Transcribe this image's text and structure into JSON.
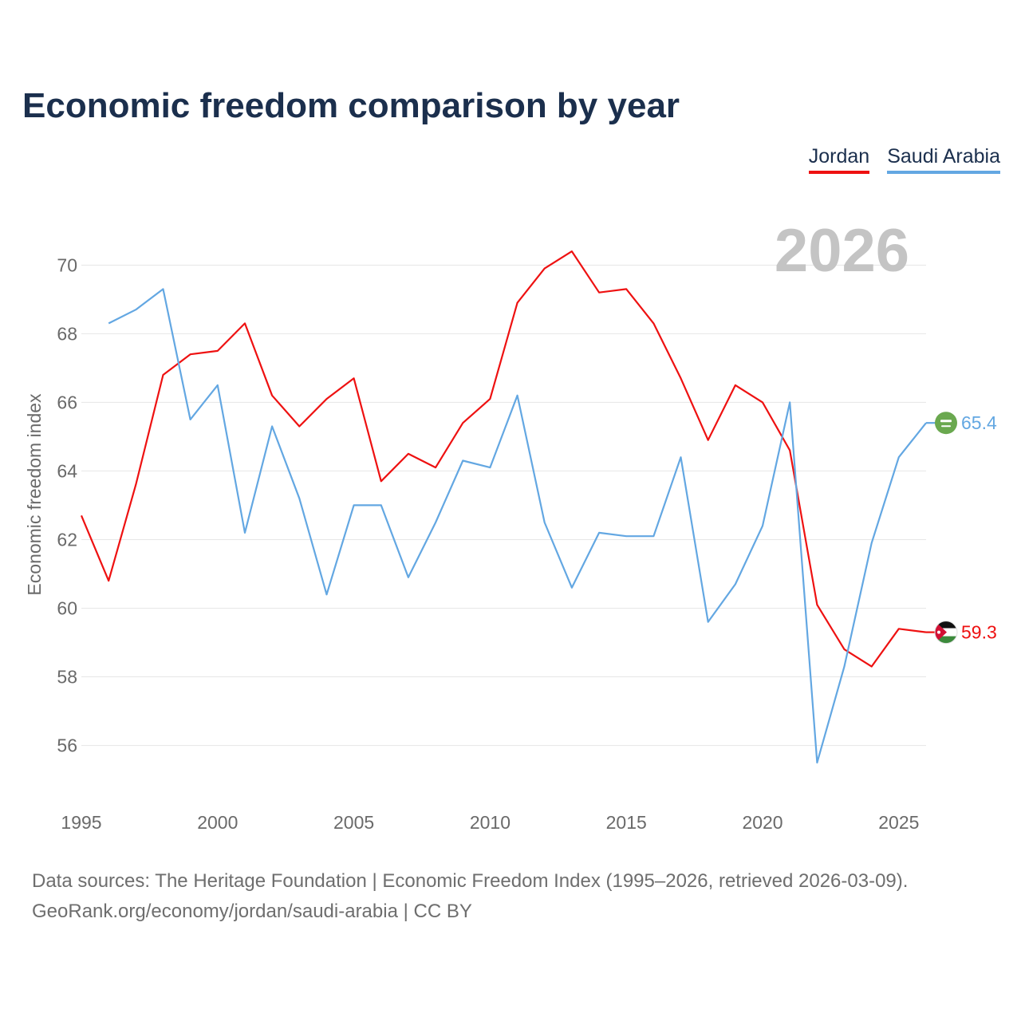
{
  "title": "Economic freedom comparison by year",
  "legend": [
    {
      "label": "Jordan",
      "color": "#ee1111"
    },
    {
      "label": "Saudi Arabia",
      "color": "#63a7e2"
    }
  ],
  "source": {
    "line1": "Data sources: The Heritage Foundation | Economic Freedom Index (1995–2026, retrieved 2026-03-09).",
    "line2": "GeoRank.org/economy/jordan/saudi-arabia | CC BY"
  },
  "flags": [
    {
      "name": "jordan-flag-icon"
    },
    {
      "name": "saudi-arabia-flag-icon",
      "glyph": "﷽"
    }
  ],
  "chart_data": {
    "type": "line",
    "title": "Economic freedom comparison by year",
    "xlabel": "",
    "ylabel": "Economic freedom index",
    "watermark_year": "2026",
    "xlim": [
      1995,
      2026
    ],
    "ylim": [
      54.2,
      71.1
    ],
    "grid": true,
    "legend_position": "top-right",
    "x_ticks": [
      1995,
      2000,
      2005,
      2010,
      2015,
      2020,
      2025
    ],
    "y_ticks": [
      56,
      58,
      60,
      62,
      64,
      66,
      68,
      70
    ],
    "series": [
      {
        "name": "Jordan",
        "color": "#ee1111",
        "end_label": "59.3",
        "x": [
          1995,
          1996,
          1997,
          1998,
          1999,
          2000,
          2001,
          2002,
          2003,
          2004,
          2005,
          2006,
          2007,
          2008,
          2009,
          2010,
          2011,
          2012,
          2013,
          2014,
          2015,
          2016,
          2017,
          2018,
          2019,
          2020,
          2021,
          2022,
          2023,
          2024,
          2025,
          2026
        ],
        "values": [
          62.7,
          60.8,
          63.6,
          66.8,
          67.4,
          67.5,
          68.3,
          66.2,
          65.3,
          66.1,
          66.7,
          63.7,
          64.5,
          64.1,
          65.4,
          66.1,
          68.9,
          69.9,
          70.4,
          69.2,
          69.3,
          68.3,
          66.7,
          64.9,
          66.5,
          66.0,
          64.6,
          60.1,
          58.8,
          58.3,
          59.4,
          59.3
        ]
      },
      {
        "name": "Saudi Arabia",
        "color": "#63a7e2",
        "end_label": "65.4",
        "x": [
          1996,
          1997,
          1998,
          1999,
          2000,
          2001,
          2002,
          2003,
          2004,
          2005,
          2006,
          2007,
          2008,
          2009,
          2010,
          2011,
          2012,
          2013,
          2014,
          2015,
          2016,
          2017,
          2018,
          2019,
          2020,
          2021,
          2022,
          2023,
          2024,
          2025,
          2026
        ],
        "values": [
          68.3,
          68.7,
          69.3,
          65.5,
          66.5,
          62.2,
          65.3,
          63.2,
          60.4,
          63.0,
          63.0,
          60.9,
          62.5,
          64.3,
          64.1,
          66.2,
          62.5,
          60.6,
          62.2,
          62.1,
          62.1,
          64.4,
          59.6,
          60.7,
          62.4,
          66.0,
          55.5,
          58.3,
          61.9,
          64.4,
          65.4
        ]
      }
    ]
  }
}
